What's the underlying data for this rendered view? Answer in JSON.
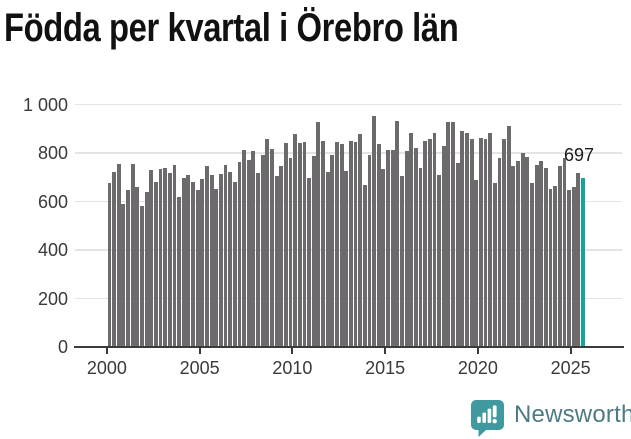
{
  "title": "Födda per kvartal i Örebro län",
  "colors": {
    "bar": "#6d6a6e",
    "highlight": "#12a49d",
    "grid": "#e4e4e4",
    "axis": "#3b3b3b",
    "tick_label": "#3a3a3a",
    "title_text": "#111111",
    "logo": "#3f999e",
    "brand_text": "#4d7b84"
  },
  "chart_data": {
    "type": "bar",
    "title": "Födda per kvartal i Örebro län",
    "x_description": "quarters from 2000 Q1 to 2025 Q3",
    "x_tick_labels": [
      "2000",
      "2005",
      "2010",
      "2015",
      "2020",
      "2025"
    ],
    "y_tick_labels": [
      "1 000",
      "800",
      "600",
      "400",
      "200",
      "0"
    ],
    "ylim": [
      0,
      1000
    ],
    "grid": "horizontal",
    "legend": "none",
    "highlighted_index": 102,
    "annotation": {
      "text": "697",
      "index": 102
    },
    "values": [
      675,
      724,
      756,
      592,
      647,
      756,
      661,
      580,
      640,
      731,
      682,
      734,
      738,
      717,
      752,
      620,
      696,
      710,
      682,
      647,
      692,
      748,
      710,
      654,
      713,
      752,
      724,
      682,
      762,
      815,
      773,
      808,
      717,
      794,
      857,
      818,
      706,
      745,
      840,
      780,
      878,
      843,
      846,
      696,
      787,
      927,
      850,
      724,
      794,
      846,
      839,
      727,
      850,
      846,
      878,
      668,
      794,
      954,
      839,
      734,
      815,
      812,
      933,
      706,
      808,
      885,
      822,
      738,
      850,
      857,
      882,
      710,
      829,
      927,
      929,
      759,
      892,
      885,
      860,
      689,
      864,
      860,
      882,
      678,
      780,
      857,
      913,
      745,
      766,
      801,
      784,
      678,
      752,
      766,
      738,
      654,
      663,
      745,
      780,
      647,
      661,
      717,
      697
    ]
  },
  "branding": {
    "name": "Newsworthy"
  }
}
